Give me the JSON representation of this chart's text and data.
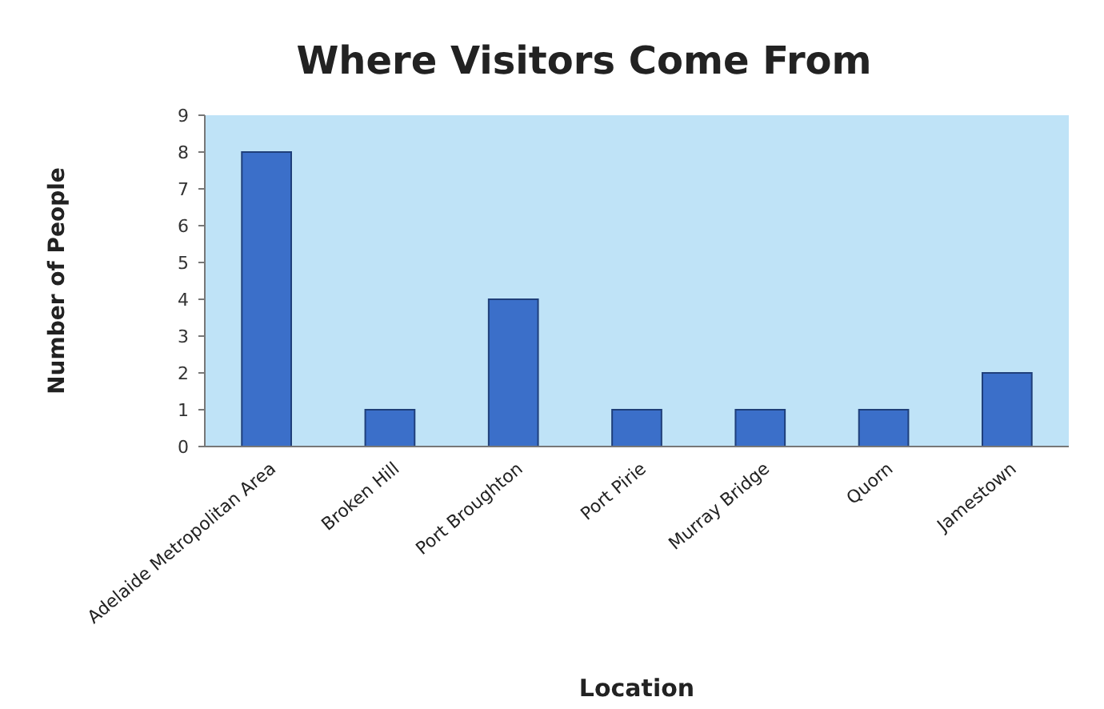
{
  "chart_data": {
    "type": "bar",
    "title": "Where Visitors Come From",
    "xlabel": "Location",
    "ylabel": "Number of People",
    "categories": [
      "Adelaide Metropolitan Area",
      "Broken Hill",
      "Port Broughton",
      "Port Pirie",
      "Murray Bridge",
      "Quorn",
      "Jamestown"
    ],
    "values": [
      8,
      1,
      4,
      1,
      1,
      1,
      2
    ],
    "color": "#3b6fc9",
    "ylim": [
      0,
      9
    ],
    "yticks": [
      0,
      1,
      2,
      3,
      4,
      5,
      6,
      7,
      8,
      9
    ],
    "grid": false
  }
}
